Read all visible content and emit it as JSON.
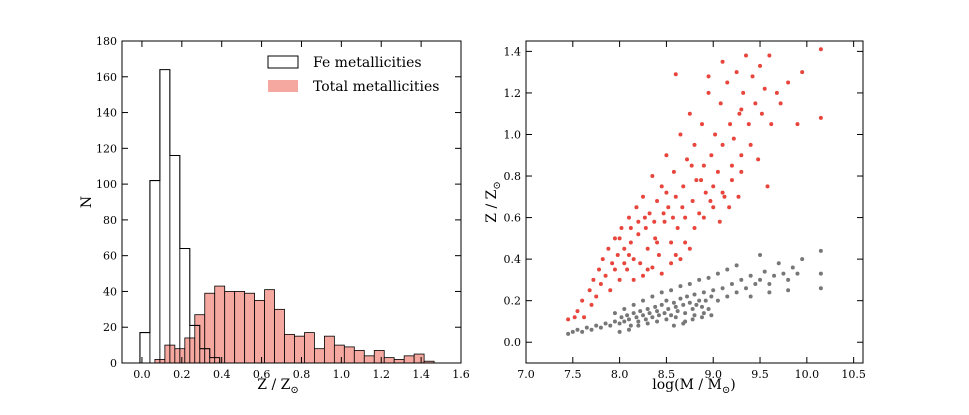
{
  "chart_data": [
    {
      "type": "histogram",
      "xlabel": "Z / Z",
      "xlabel_sub": "⊙",
      "ylabel": "N",
      "xlim": [
        -0.1,
        1.6
      ],
      "ylim": [
        0,
        180
      ],
      "xticks": [
        "0.0",
        "0.2",
        "0.4",
        "0.6",
        "0.8",
        "1.0",
        "1.2",
        "1.4",
        "1.6"
      ],
      "xtick_values": [
        0,
        0.2,
        0.4,
        0.6,
        0.8,
        1.0,
        1.2,
        1.4,
        1.6
      ],
      "yticks": [
        "0",
        "20",
        "40",
        "60",
        "80",
        "100",
        "120",
        "140",
        "160",
        "180"
      ],
      "ytick_values": [
        0,
        20,
        40,
        60,
        80,
        100,
        120,
        140,
        160,
        180
      ],
      "bin_width": 0.05,
      "legend_position": "top-right",
      "series": [
        {
          "name": "Fe metallicities",
          "style": "step",
          "color": "#000000",
          "bin_starts": [
            -0.01,
            0.04,
            0.09,
            0.14,
            0.19,
            0.24,
            0.29,
            0.34,
            0.39
          ],
          "counts": [
            17,
            102,
            164,
            116,
            64,
            21,
            8,
            3,
            0
          ]
        },
        {
          "name": "Total metallicities",
          "style": "filled",
          "color": "#f4a8a0",
          "bin_starts": [
            0.065,
            0.115,
            0.165,
            0.215,
            0.265,
            0.315,
            0.365,
            0.415,
            0.465,
            0.515,
            0.565,
            0.615,
            0.665,
            0.715,
            0.765,
            0.815,
            0.865,
            0.915,
            0.965,
            1.015,
            1.065,
            1.115,
            1.165,
            1.215,
            1.265,
            1.315,
            1.365,
            1.415
          ],
          "counts": [
            2,
            10,
            8,
            14,
            27,
            39,
            43,
            40,
            40,
            39,
            35,
            41,
            30,
            16,
            15,
            17,
            8,
            15,
            10,
            9,
            7,
            4,
            7,
            3,
            2,
            4,
            5,
            1
          ]
        }
      ]
    },
    {
      "type": "scatter",
      "xlabel": "log(M / M",
      "xlabel_sub": "⊙",
      "xlabel_close": ")",
      "ylabel": "Z / Z",
      "ylabel_sub": "⊙",
      "xlim": [
        7.0,
        10.6
      ],
      "ylim": [
        -0.1,
        1.45
      ],
      "xticks": [
        "7.0",
        "7.5",
        "8.0",
        "8.5",
        "9.0",
        "9.5",
        "10.0",
        "10.5"
      ],
      "xtick_values": [
        7.0,
        7.5,
        8.0,
        8.5,
        9.0,
        9.5,
        10.0,
        10.5
      ],
      "yticks": [
        "0.0",
        "0.2",
        "0.4",
        "0.6",
        "0.8",
        "1.0",
        "1.2",
        "1.4"
      ],
      "ytick_values": [
        0.0,
        0.2,
        0.4,
        0.6,
        0.8,
        1.0,
        1.2,
        1.4
      ],
      "series": [
        {
          "name": "Total metallicities",
          "color": "#e8453c",
          "points": [
            [
              7.45,
              0.11
            ],
            [
              7.52,
              0.12
            ],
            [
              7.55,
              0.15
            ],
            [
              7.6,
              0.2
            ],
            [
              7.62,
              0.12
            ],
            [
              7.68,
              0.25
            ],
            [
              7.7,
              0.18
            ],
            [
              7.72,
              0.3
            ],
            [
              7.75,
              0.22
            ],
            [
              7.78,
              0.35
            ],
            [
              7.8,
              0.28
            ],
            [
              7.82,
              0.4
            ],
            [
              7.85,
              0.32
            ],
            [
              7.88,
              0.45
            ],
            [
              7.9,
              0.25
            ],
            [
              7.92,
              0.38
            ],
            [
              7.95,
              0.5
            ],
            [
              7.98,
              0.42
            ],
            [
              8.0,
              0.3
            ],
            [
              8.02,
              0.55
            ],
            [
              8.05,
              0.45
            ],
            [
              8.08,
              0.35
            ],
            [
              8.1,
              0.6
            ],
            [
              8.12,
              0.48
            ],
            [
              8.15,
              0.4
            ],
            [
              8.18,
              0.65
            ],
            [
              8.2,
              0.52
            ],
            [
              8.22,
              0.38
            ],
            [
              8.25,
              0.7
            ],
            [
              8.28,
              0.55
            ],
            [
              8.3,
              0.45
            ],
            [
              8.32,
              0.62
            ],
            [
              8.35,
              0.8
            ],
            [
              8.38,
              0.5
            ],
            [
              8.4,
              0.68
            ],
            [
              8.42,
              0.42
            ],
            [
              8.45,
              0.75
            ],
            [
              8.48,
              0.58
            ],
            [
              8.5,
              0.9
            ],
            [
              8.52,
              0.65
            ],
            [
              8.55,
              0.48
            ],
            [
              8.58,
              0.82
            ],
            [
              8.6,
              0.7
            ],
            [
              8.62,
              0.55
            ],
            [
              8.65,
              1.0
            ],
            [
              8.68,
              0.75
            ],
            [
              8.7,
              0.6
            ],
            [
              8.72,
              0.88
            ],
            [
              8.75,
              1.1
            ],
            [
              8.78,
              0.68
            ],
            [
              8.8,
              0.95
            ],
            [
              8.82,
              0.78
            ],
            [
              8.85,
              0.62
            ],
            [
              8.88,
              1.05
            ],
            [
              8.9,
              0.85
            ],
            [
              8.92,
              0.72
            ],
            [
              8.95,
              1.2
            ],
            [
              8.98,
              0.9
            ],
            [
              9.0,
              0.75
            ],
            [
              9.02,
              1.0
            ],
            [
              9.05,
              0.82
            ],
            [
              9.08,
              1.15
            ],
            [
              9.1,
              0.95
            ],
            [
              9.12,
              0.7
            ],
            [
              9.15,
              1.25
            ],
            [
              9.18,
              1.05
            ],
            [
              9.2,
              0.85
            ],
            [
              9.22,
              0.98
            ],
            [
              9.25,
              1.3
            ],
            [
              9.28,
              1.1
            ],
            [
              9.3,
              0.9
            ],
            [
              9.32,
              1.2
            ],
            [
              9.35,
              1.38
            ],
            [
              9.38,
              1.05
            ],
            [
              9.4,
              0.95
            ],
            [
              9.42,
              1.28
            ],
            [
              9.45,
              1.15
            ],
            [
              9.48,
              0.88
            ],
            [
              9.5,
              1.33
            ],
            [
              9.52,
              1.1
            ],
            [
              9.55,
              1.22
            ],
            [
              9.58,
              0.75
            ],
            [
              9.6,
              1.38
            ],
            [
              9.62,
              1.05
            ],
            [
              9.68,
              1.2
            ],
            [
              9.72,
              1.15
            ],
            [
              9.8,
              1.25
            ],
            [
              9.9,
              1.05
            ],
            [
              9.95,
              1.3
            ],
            [
              10.15,
              1.41
            ],
            [
              10.15,
              1.08
            ],
            [
              8.0,
              0.5
            ],
            [
              8.1,
              0.42
            ],
            [
              8.2,
              0.58
            ],
            [
              8.3,
              0.35
            ],
            [
              8.4,
              0.48
            ],
            [
              8.5,
              0.72
            ],
            [
              8.6,
              0.42
            ],
            [
              8.7,
              0.48
            ],
            [
              8.8,
              0.55
            ],
            [
              8.9,
              0.6
            ],
            [
              9.0,
              0.65
            ],
            [
              9.1,
              0.72
            ],
            [
              9.2,
              0.78
            ],
            [
              9.3,
              0.82
            ],
            [
              8.15,
              0.3
            ],
            [
              8.25,
              0.32
            ],
            [
              8.35,
              0.36
            ],
            [
              8.45,
              0.33
            ],
            [
              8.55,
              0.38
            ],
            [
              8.65,
              0.4
            ],
            [
              8.75,
              0.45
            ],
            [
              7.95,
              0.35
            ],
            [
              8.05,
              0.38
            ],
            [
              8.12,
              0.55
            ],
            [
              8.27,
              0.6
            ],
            [
              8.37,
              0.58
            ],
            [
              8.47,
              0.62
            ],
            [
              8.57,
              0.6
            ],
            [
              8.67,
              0.65
            ],
            [
              8.77,
              0.85
            ],
            [
              8.87,
              0.78
            ],
            [
              8.97,
              0.68
            ],
            [
              9.07,
              0.58
            ],
            [
              9.17,
              0.65
            ],
            [
              9.27,
              0.7
            ],
            [
              8.6,
              1.29
            ],
            [
              8.95,
              1.28
            ],
            [
              9.1,
              1.35
            ],
            [
              9.3,
              1.12
            ]
          ]
        },
        {
          "name": "Fe metallicities",
          "color": "#777777",
          "points": [
            [
              7.45,
              0.04
            ],
            [
              7.5,
              0.05
            ],
            [
              7.55,
              0.06
            ],
            [
              7.6,
              0.05
            ],
            [
              7.65,
              0.07
            ],
            [
              7.7,
              0.06
            ],
            [
              7.75,
              0.08
            ],
            [
              7.8,
              0.07
            ],
            [
              7.85,
              0.09
            ],
            [
              7.9,
              0.08
            ],
            [
              7.95,
              0.1
            ],
            [
              8.0,
              0.09
            ],
            [
              8.02,
              0.12
            ],
            [
              8.05,
              0.1
            ],
            [
              8.08,
              0.13
            ],
            [
              8.1,
              0.11
            ],
            [
              8.12,
              0.08
            ],
            [
              8.15,
              0.14
            ],
            [
              8.18,
              0.12
            ],
            [
              8.2,
              0.1
            ],
            [
              8.22,
              0.15
            ],
            [
              8.25,
              0.13
            ],
            [
              8.28,
              0.11
            ],
            [
              8.3,
              0.16
            ],
            [
              8.32,
              0.14
            ],
            [
              8.35,
              0.12
            ],
            [
              8.38,
              0.17
            ],
            [
              8.4,
              0.15
            ],
            [
              8.42,
              0.13
            ],
            [
              8.45,
              0.18
            ],
            [
              8.48,
              0.14
            ],
            [
              8.5,
              0.2
            ],
            [
              8.52,
              0.16
            ],
            [
              8.55,
              0.13
            ],
            [
              8.58,
              0.19
            ],
            [
              8.6,
              0.17
            ],
            [
              8.62,
              0.15
            ],
            [
              8.65,
              0.21
            ],
            [
              8.68,
              0.18
            ],
            [
              8.7,
              0.14
            ],
            [
              8.72,
              0.22
            ],
            [
              8.75,
              0.19
            ],
            [
              8.78,
              0.16
            ],
            [
              8.8,
              0.23
            ],
            [
              8.82,
              0.18
            ],
            [
              8.85,
              0.2
            ],
            [
              8.88,
              0.17
            ],
            [
              8.9,
              0.24
            ],
            [
              8.92,
              0.2
            ],
            [
              8.95,
              0.16
            ],
            [
              8.98,
              0.22
            ],
            [
              9.0,
              0.25
            ],
            [
              9.05,
              0.2
            ],
            [
              9.1,
              0.26
            ],
            [
              9.15,
              0.22
            ],
            [
              9.2,
              0.28
            ],
            [
              9.25,
              0.24
            ],
            [
              9.3,
              0.3
            ],
            [
              9.35,
              0.26
            ],
            [
              9.4,
              0.32
            ],
            [
              9.45,
              0.28
            ],
            [
              9.5,
              0.3
            ],
            [
              9.55,
              0.34
            ],
            [
              9.6,
              0.28
            ],
            [
              9.65,
              0.32
            ],
            [
              9.7,
              0.38
            ],
            [
              9.75,
              0.33
            ],
            [
              9.8,
              0.3
            ],
            [
              9.85,
              0.36
            ],
            [
              9.9,
              0.33
            ],
            [
              9.95,
              0.4
            ],
            [
              10.15,
              0.44
            ],
            [
              10.15,
              0.33
            ],
            [
              10.15,
              0.26
            ],
            [
              8.0,
              0.05
            ],
            [
              8.1,
              0.06
            ],
            [
              8.2,
              0.08
            ],
            [
              8.3,
              0.09
            ],
            [
              8.4,
              0.1
            ],
            [
              8.5,
              0.11
            ],
            [
              8.6,
              0.12
            ],
            [
              8.7,
              0.1
            ],
            [
              8.8,
              0.13
            ],
            [
              8.9,
              0.14
            ],
            [
              7.95,
              0.14
            ],
            [
              8.05,
              0.16
            ],
            [
              8.15,
              0.18
            ],
            [
              8.25,
              0.2
            ],
            [
              8.35,
              0.22
            ],
            [
              8.45,
              0.24
            ],
            [
              8.55,
              0.25
            ],
            [
              8.65,
              0.27
            ],
            [
              8.75,
              0.28
            ],
            [
              8.85,
              0.3
            ],
            [
              8.95,
              0.31
            ],
            [
              9.05,
              0.33
            ],
            [
              9.15,
              0.35
            ],
            [
              9.25,
              0.37
            ],
            [
              9.5,
              0.42
            ],
            [
              9.4,
              0.22
            ],
            [
              9.6,
              0.24
            ],
            [
              9.8,
              0.25
            ],
            [
              8.58,
              0.08
            ],
            [
              8.68,
              0.09
            ],
            [
              8.78,
              0.11
            ],
            [
              8.88,
              0.12
            ],
            [
              8.98,
              0.13
            ]
          ]
        }
      ]
    }
  ]
}
